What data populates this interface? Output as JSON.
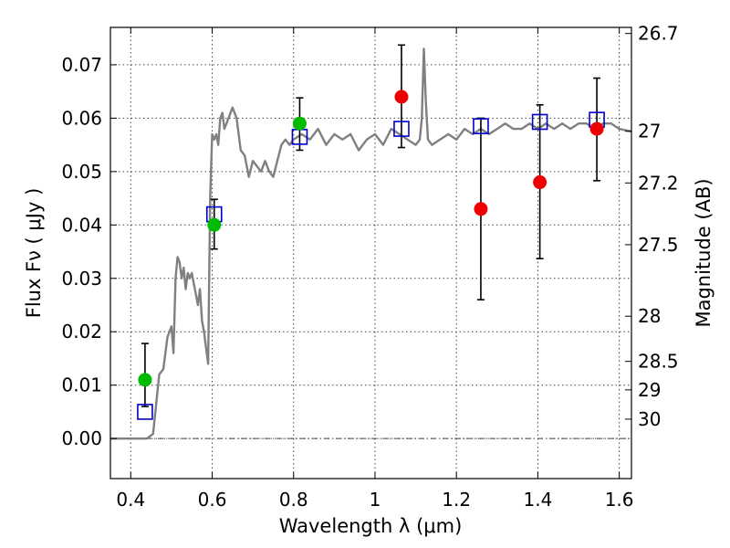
{
  "chart_data": {
    "type": "scatter",
    "title": "",
    "xlabel": "Wavelength  λ (μm)",
    "ylabel": "Flux  Fν  ( μJy )",
    "ylabel_right": "Magnitude (AB)",
    "xlim": [
      0.35,
      1.63
    ],
    "ylim": [
      -0.0075,
      0.077
    ],
    "grid": true,
    "x_ticks": [
      0.4,
      0.6,
      0.8,
      1.0,
      1.2,
      1.4,
      1.6
    ],
    "x_tick_labels": [
      "0.4",
      "0.6",
      "0.8",
      "1",
      "1.2",
      "1.4",
      "1.6"
    ],
    "y_ticks": [
      0.0,
      0.01,
      0.02,
      0.03,
      0.04,
      0.05,
      0.06,
      0.07
    ],
    "y_tick_labels": [
      "0.00",
      "0.01",
      "0.02",
      "0.03",
      "0.04",
      "0.05",
      "0.06",
      "0.07"
    ],
    "mag_ticks": [
      26.7,
      27,
      27.2,
      27.5,
      28,
      28.5,
      29,
      30
    ],
    "mag_tick_labels": [
      "26.7",
      "27",
      "27.2",
      "27.5",
      "28",
      "28.5",
      "29",
      "30"
    ],
    "zero_line_y": 0.0,
    "colors": {
      "model": "#808080",
      "green": "#00bb00",
      "red": "#ee0000",
      "square": "#0000cc",
      "errorbar": "#000000"
    },
    "series": [
      {
        "marker": "line",
        "color": "#808080",
        "x": [
          0.35,
          0.43,
          0.44,
          0.455,
          0.47,
          0.48,
          0.49,
          0.5,
          0.505,
          0.51,
          0.515,
          0.52,
          0.525,
          0.53,
          0.535,
          0.54,
          0.545,
          0.55,
          0.555,
          0.56,
          0.565,
          0.57,
          0.575,
          0.58,
          0.585,
          0.59,
          0.595,
          0.6,
          0.605,
          0.61,
          0.615,
          0.62,
          0.625,
          0.63,
          0.64,
          0.65,
          0.66,
          0.67,
          0.68,
          0.69,
          0.7,
          0.71,
          0.72,
          0.73,
          0.74,
          0.75,
          0.76,
          0.77,
          0.78,
          0.79,
          0.8,
          0.82,
          0.84,
          0.86,
          0.88,
          0.9,
          0.92,
          0.94,
          0.96,
          0.98,
          1.0,
          1.02,
          1.04,
          1.06,
          1.08,
          1.1,
          1.11,
          1.115,
          1.12,
          1.125,
          1.13,
          1.14,
          1.16,
          1.18,
          1.2,
          1.22,
          1.24,
          1.26,
          1.28,
          1.3,
          1.32,
          1.34,
          1.36,
          1.38,
          1.4,
          1.42,
          1.44,
          1.46,
          1.48,
          1.5,
          1.52,
          1.54,
          1.56,
          1.58,
          1.6,
          1.63
        ],
        "y": [
          0.0,
          0.0,
          0.0,
          0.0009,
          0.012,
          0.013,
          0.019,
          0.021,
          0.016,
          0.03,
          0.034,
          0.033,
          0.03,
          0.032,
          0.028,
          0.031,
          0.03,
          0.031,
          0.029,
          0.027,
          0.025,
          0.028,
          0.022,
          0.02,
          0.017,
          0.014,
          0.045,
          0.057,
          0.056,
          0.057,
          0.055,
          0.06,
          0.061,
          0.058,
          0.06,
          0.062,
          0.06,
          0.054,
          0.053,
          0.049,
          0.052,
          0.051,
          0.05,
          0.052,
          0.05,
          0.049,
          0.052,
          0.055,
          0.056,
          0.055,
          0.056,
          0.057,
          0.056,
          0.058,
          0.055,
          0.057,
          0.056,
          0.057,
          0.054,
          0.056,
          0.057,
          0.055,
          0.058,
          0.057,
          0.056,
          0.055,
          0.056,
          0.06,
          0.073,
          0.063,
          0.056,
          0.055,
          0.056,
          0.057,
          0.056,
          0.058,
          0.057,
          0.058,
          0.057,
          0.058,
          0.059,
          0.058,
          0.058,
          0.059,
          0.058,
          0.059,
          0.058,
          0.059,
          0.058,
          0.059,
          0.059,
          0.058,
          0.059,
          0.059,
          0.058,
          0.0575
        ]
      },
      {
        "marker": "square",
        "color": "#0000cc",
        "x": [
          0.435,
          0.605,
          0.815,
          1.065,
          1.26,
          1.405,
          1.545
        ],
        "y": [
          0.005,
          0.042,
          0.0565,
          0.058,
          0.0585,
          0.0593,
          0.0597
        ]
      },
      {
        "marker": "circle",
        "color": "#00bb00",
        "x": [
          0.435,
          0.605,
          0.815
        ],
        "y": [
          0.011,
          0.04,
          0.059
        ],
        "yerr_low": [
          0.005,
          0.0045,
          0.005
        ],
        "yerr_high": [
          0.0068,
          0.0048,
          0.0048
        ]
      },
      {
        "marker": "circle",
        "color": "#ee0000",
        "x": [
          1.065,
          1.26,
          1.405,
          1.545
        ],
        "y": [
          0.064,
          0.043,
          0.048,
          0.058
        ],
        "yerr_low": [
          0.0095,
          0.017,
          0.0143,
          0.0097
        ],
        "yerr_high": [
          0.0097,
          0.017,
          0.0145,
          0.0095
        ]
      }
    ]
  }
}
